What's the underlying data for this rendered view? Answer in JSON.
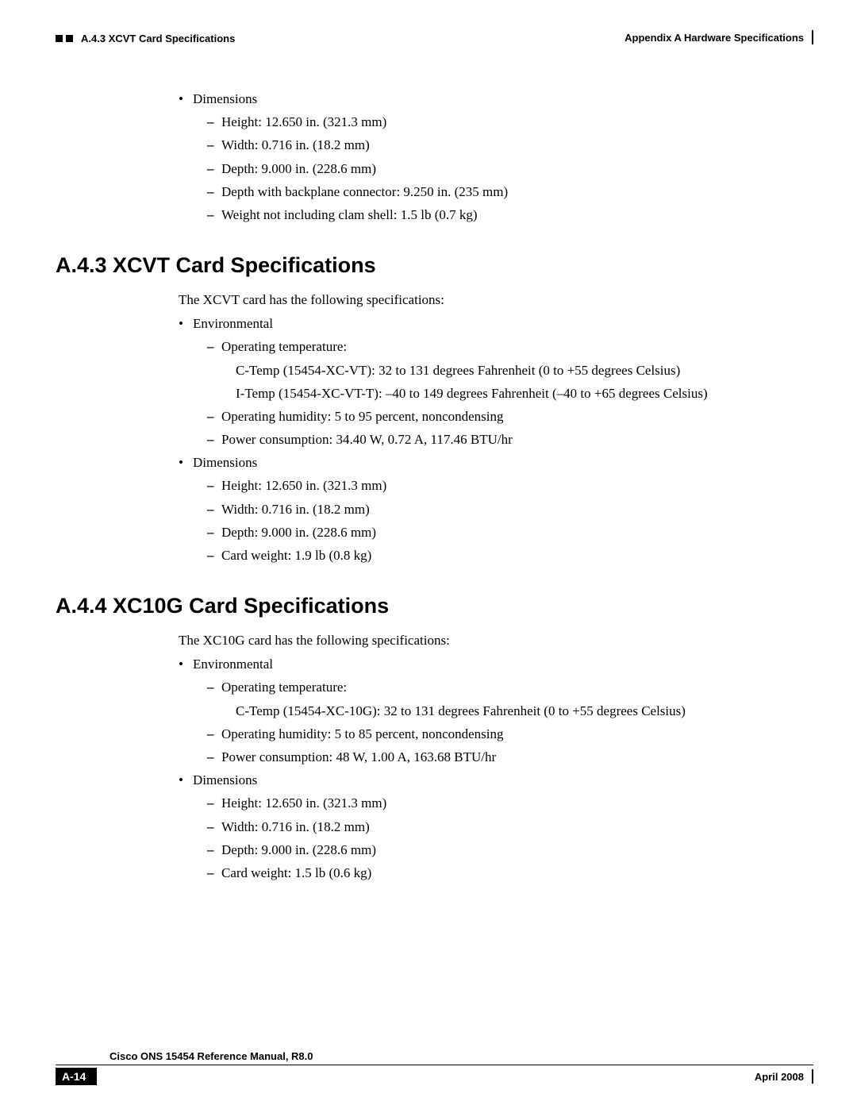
{
  "header": {
    "left": "A.4.3  XCVT Card Specifications",
    "right": "Appendix A Hardware Specifications"
  },
  "top_section": {
    "bullet": "Dimensions",
    "subs": [
      "Height: 12.650 in. (321.3 mm)",
      "Width: 0.716 in. (18.2 mm)",
      "Depth: 9.000 in. (228.6 mm)",
      "Depth with backplane connector: 9.250 in. (235 mm)",
      "Weight not including clam shell: 1.5 lb (0.7 kg)"
    ]
  },
  "sec43": {
    "heading": "A.4.3  XCVT Card Specifications",
    "intro": "The XCVT card has the following specifications:",
    "env": {
      "label": "Environmental",
      "op_temp": "Operating temperature:",
      "ctemp": "C-Temp (15454-XC-VT): 32 to 131 degrees Fahrenheit (0 to +55 degrees Celsius)",
      "itemp": "I-Temp (15454-XC-VT-T): –40 to 149 degrees Fahrenheit (–40 to +65 degrees Celsius)",
      "humidity": "Operating humidity: 5 to 95 percent, noncondensing",
      "power": "Power consumption: 34.40 W, 0.72 A, 117.46 BTU/hr"
    },
    "dim": {
      "label": "Dimensions",
      "height": "Height: 12.650 in. (321.3 mm)",
      "width": "Width: 0.716 in. (18.2 mm)",
      "depth": "Depth: 9.000 in. (228.6 mm)",
      "weight": "Card weight: 1.9 lb (0.8 kg)"
    }
  },
  "sec44": {
    "heading": "A.4.4  XC10G Card Specifications",
    "intro": "The XC10G card has the following specifications:",
    "env": {
      "label": "Environmental",
      "op_temp": "Operating temperature:",
      "ctemp": "C-Temp (15454-XC-10G): 32 to 131 degrees Fahrenheit (0 to +55 degrees Celsius)",
      "humidity": "Operating humidity: 5 to 85 percent, noncondensing",
      "power": "Power consumption: 48 W, 1.00 A, 163.68 BTU/hr"
    },
    "dim": {
      "label": "Dimensions",
      "height": "Height: 12.650 in. (321.3 mm)",
      "width": "Width: 0.716 in. (18.2 mm)",
      "depth": "Depth: 9.000 in. (228.6 mm)",
      "weight": "Card weight: 1.5 lb (0.6 kg)"
    }
  },
  "footer": {
    "manual": "Cisco ONS 15454 Reference Manual, R8.0",
    "page": "A-14",
    "date": "April 2008"
  }
}
